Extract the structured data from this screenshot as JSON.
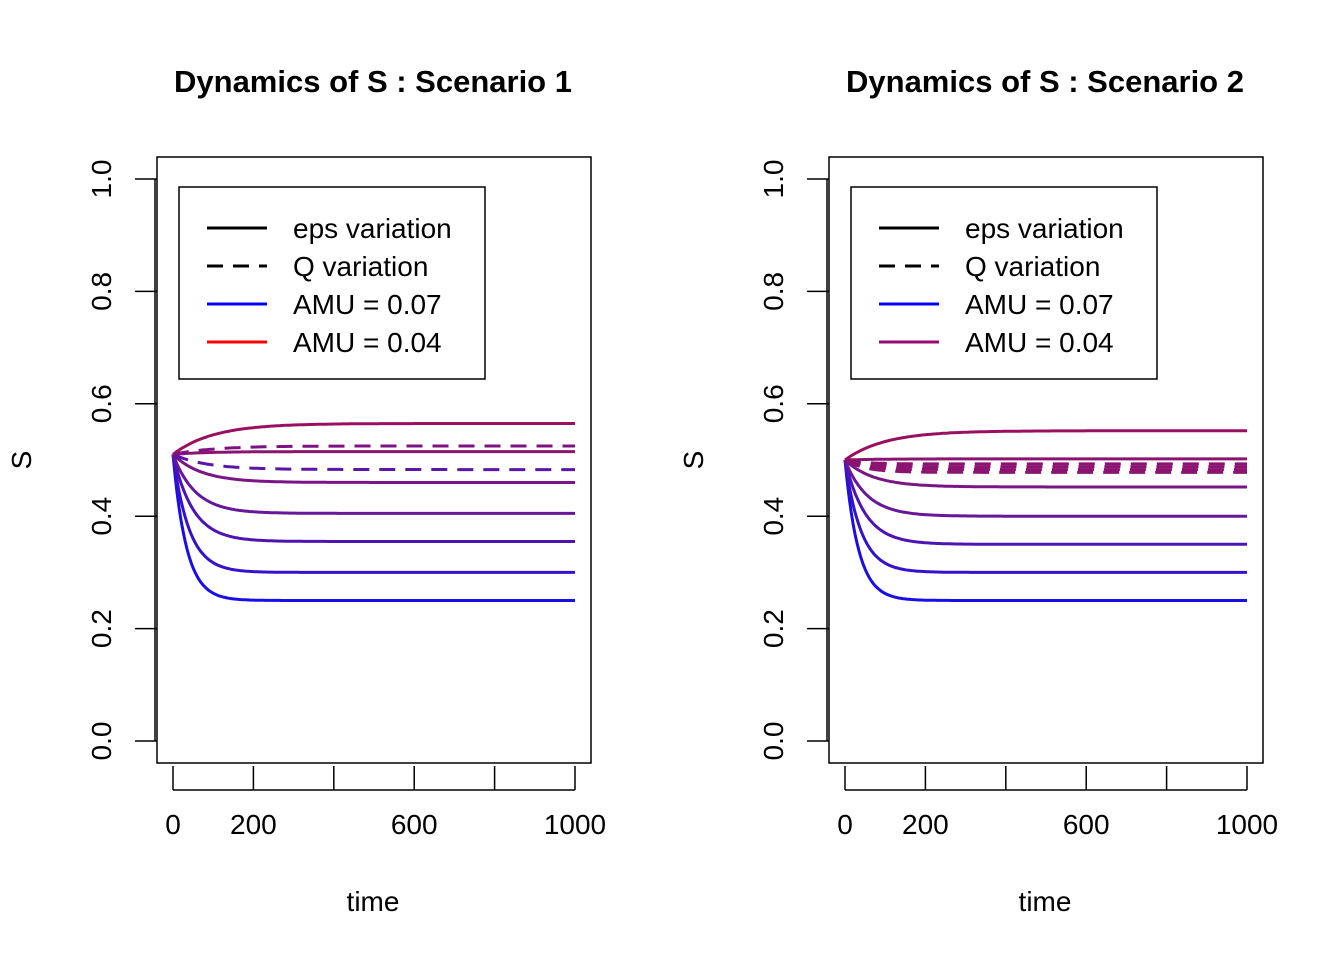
{
  "chart_data": [
    {
      "type": "line",
      "title": "Dynamics of S : Scenario 1",
      "xlabel": "time",
      "ylabel": "S",
      "xlim": [
        0,
        1000
      ],
      "ylim": [
        0,
        1
      ],
      "xticks": [
        0,
        200,
        400,
        600,
        800,
        1000
      ],
      "xtick_labels": [
        "0",
        "200",
        "",
        "600",
        "",
        "1000"
      ],
      "yticks": [
        0.0,
        0.2,
        0.4,
        0.6,
        0.8,
        1.0
      ],
      "ytick_labels": [
        "0.0",
        "0.2",
        "0.4",
        "0.6",
        "0.8",
        "1.0"
      ],
      "grid": false,
      "legend_position": "top-left",
      "legend": [
        {
          "label": "eps variation",
          "style": "solid",
          "color": "#000000"
        },
        {
          "label": "Q variation",
          "style": "dashed",
          "color": "#000000"
        },
        {
          "label": "AMU = 0.07",
          "style": "solid",
          "color": "#0000ff"
        },
        {
          "label": "AMU = 0.04",
          "style": "solid",
          "color": "#ff0000"
        }
      ],
      "initial_value": 0.51,
      "series": [
        {
          "style": "solid",
          "color": "#1a0ee6",
          "final": 0.25,
          "rate": 0.03
        },
        {
          "style": "solid",
          "color": "#3411cc",
          "final": 0.3,
          "rate": 0.025
        },
        {
          "style": "solid",
          "color": "#4d14b3",
          "final": 0.355,
          "rate": 0.02
        },
        {
          "style": "solid",
          "color": "#66179a",
          "final": 0.405,
          "rate": 0.018
        },
        {
          "style": "solid",
          "color": "#7a1585",
          "final": 0.46,
          "rate": 0.014
        },
        {
          "style": "solid",
          "color": "#8a1470",
          "final": 0.515,
          "rate": 0.012
        },
        {
          "style": "solid",
          "color": "#9a1060",
          "final": 0.565,
          "rate": 0.01
        },
        {
          "style": "dashed",
          "color": "#5a16a6",
          "final": 0.483,
          "rate": 0.012
        },
        {
          "style": "dashed",
          "color": "#7e1280",
          "final": 0.525,
          "rate": 0.01
        }
      ]
    },
    {
      "type": "line",
      "title": "Dynamics of S : Scenario 2",
      "xlabel": "time",
      "ylabel": "S",
      "xlim": [
        0,
        1000
      ],
      "ylim": [
        0,
        1
      ],
      "xticks": [
        0,
        200,
        400,
        600,
        800,
        1000
      ],
      "xtick_labels": [
        "0",
        "200",
        "",
        "600",
        "",
        "1000"
      ],
      "yticks": [
        0.0,
        0.2,
        0.4,
        0.6,
        0.8,
        1.0
      ],
      "ytick_labels": [
        "0.0",
        "0.2",
        "0.4",
        "0.6",
        "0.8",
        "1.0"
      ],
      "grid": false,
      "legend_position": "top-left",
      "legend": [
        {
          "label": "eps variation",
          "style": "solid",
          "color": "#000000"
        },
        {
          "label": "Q variation",
          "style": "dashed",
          "color": "#000000"
        },
        {
          "label": "AMU = 0.07",
          "style": "solid",
          "color": "#0000ff"
        },
        {
          "label": "AMU = 0.04",
          "style": "solid",
          "color": "#9b0a6e"
        }
      ],
      "initial_value": 0.5,
      "series": [
        {
          "style": "solid",
          "color": "#1a0ee6",
          "final": 0.25,
          "rate": 0.03
        },
        {
          "style": "solid",
          "color": "#3411cc",
          "final": 0.3,
          "rate": 0.025
        },
        {
          "style": "solid",
          "color": "#4d14b3",
          "final": 0.35,
          "rate": 0.02
        },
        {
          "style": "solid",
          "color": "#66179a",
          "final": 0.4,
          "rate": 0.018
        },
        {
          "style": "solid",
          "color": "#7a1585",
          "final": 0.452,
          "rate": 0.014
        },
        {
          "style": "solid",
          "color": "#8a1470",
          "final": 0.502,
          "rate": 0.012
        },
        {
          "style": "solid",
          "color": "#9a1060",
          "final": 0.552,
          "rate": 0.01
        },
        {
          "style": "dashed",
          "color": "#8a1470",
          "final": 0.478,
          "rate": 0.02
        },
        {
          "style": "dashed",
          "color": "#8a1470",
          "final": 0.483,
          "rate": 0.02
        },
        {
          "style": "dashed",
          "color": "#8a1470",
          "final": 0.488,
          "rate": 0.02
        },
        {
          "style": "dashed",
          "color": "#8a1470",
          "final": 0.493,
          "rate": 0.02
        }
      ]
    }
  ]
}
